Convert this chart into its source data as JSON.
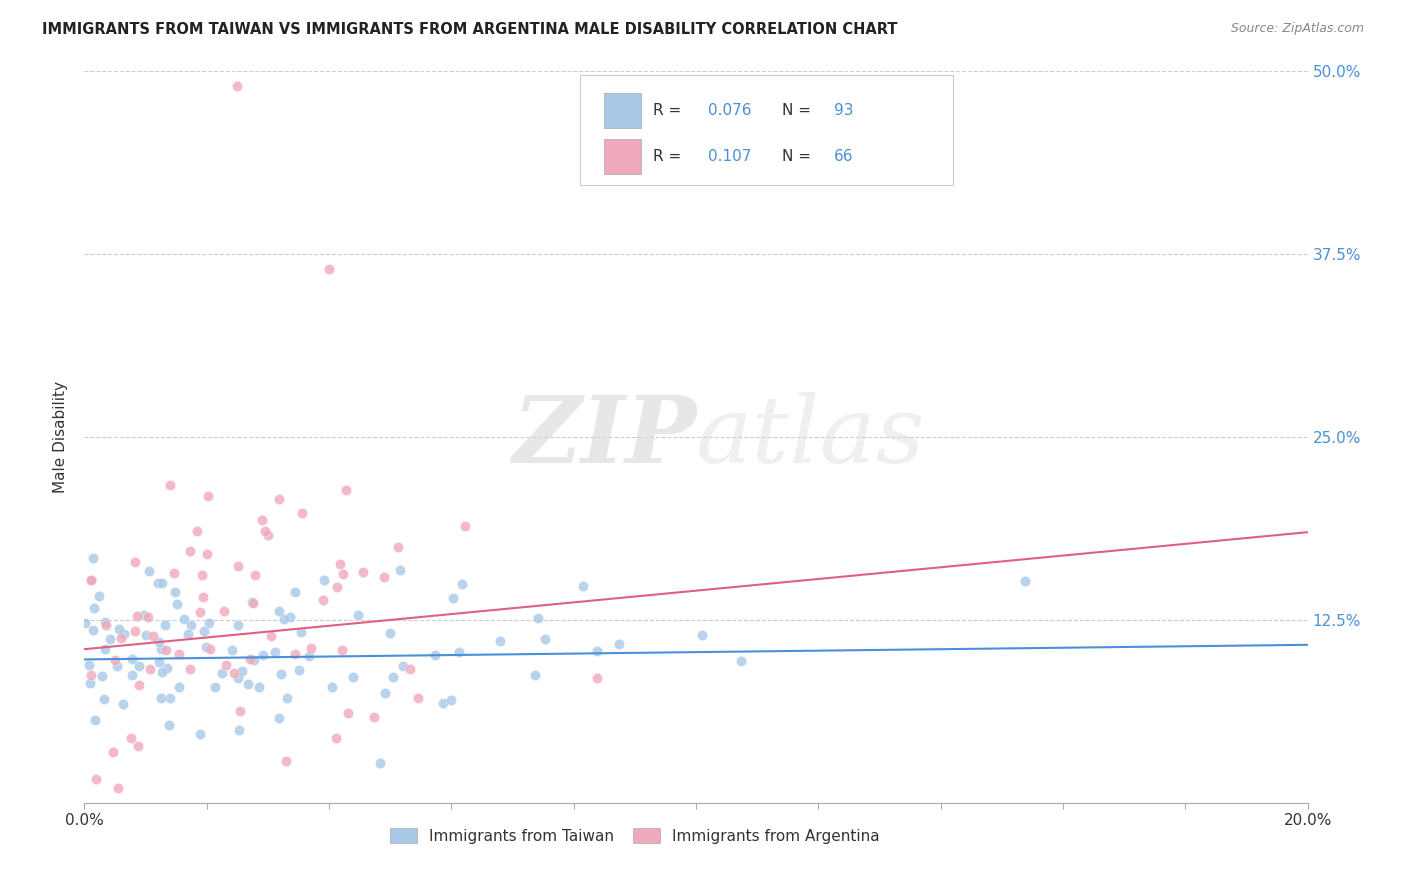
{
  "title": "IMMIGRANTS FROM TAIWAN VS IMMIGRANTS FROM ARGENTINA MALE DISABILITY CORRELATION CHART",
  "source": "Source: ZipAtlas.com",
  "ylabel": "Male Disability",
  "xlim": [
    0.0,
    0.2
  ],
  "ylim": [
    0.0,
    0.5
  ],
  "taiwan_color": "#a8c8e8",
  "argentina_color": "#f0a8bc",
  "taiwan_line_color": "#4a90d9",
  "argentina_line_color": "#e06080",
  "taiwan_R": 0.076,
  "taiwan_N": 93,
  "argentina_R": 0.107,
  "argentina_N": 66,
  "legend_label_taiwan": "Immigrants from Taiwan",
  "legend_label_argentina": "Immigrants from Argentina",
  "watermark_zip": "ZIP",
  "watermark_atlas": "atlas",
  "grid_color": "#cccccc",
  "tick_color": "#4a90d9",
  "title_color": "#222222",
  "source_color": "#888888"
}
